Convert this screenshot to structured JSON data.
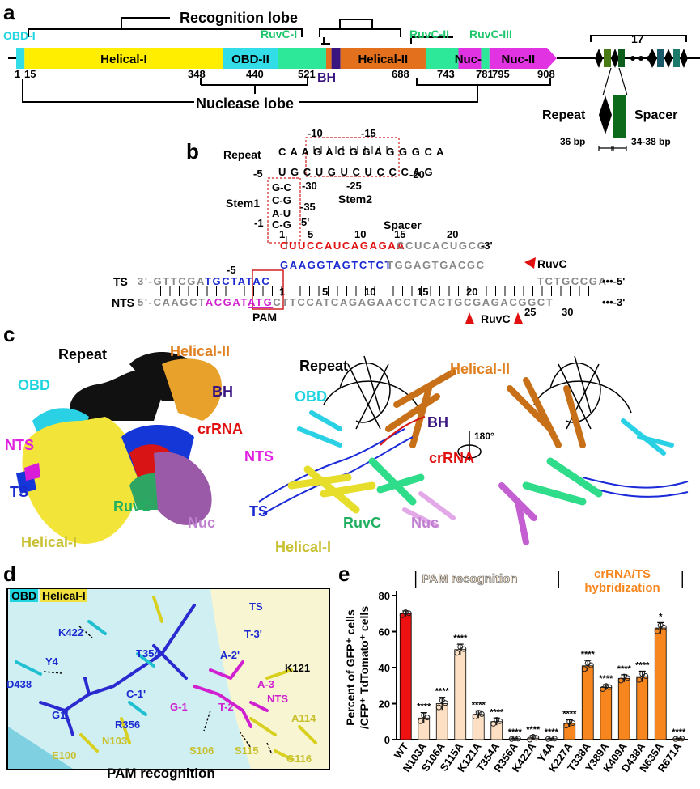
{
  "panels": {
    "a": "a",
    "b": "b",
    "c": "c",
    "d": "d",
    "e": "e"
  },
  "panel_a": {
    "recognition_lobe": "Recognition lobe",
    "nuclease_lobe": "Nuclease lobe",
    "top_labels": {
      "obd1": "OBD-I",
      "ruvc1": "RuvC-I",
      "ruvc2": "RuvC-II",
      "ruvc3": "RuvC-III"
    },
    "domains": [
      {
        "name": "",
        "color": "#33dde8",
        "start": 1,
        "end": 15
      },
      {
        "name": "Helical-I",
        "color": "#ffee00",
        "start": 15,
        "end": 348
      },
      {
        "name": "OBD-II",
        "color": "#33dde8",
        "start": 348,
        "end": 440
      },
      {
        "name": "",
        "color": "#2ee89a",
        "start": 440,
        "end": 521
      },
      {
        "name": "",
        "color": "#e2701c",
        "start": 521,
        "end": 530
      },
      {
        "name": "",
        "color": "#3a1580",
        "start": 530,
        "end": 545
      },
      {
        "name": "Helical-II",
        "color": "#e2701c",
        "start": 545,
        "end": 688
      },
      {
        "name": "",
        "color": "#2ee89a",
        "start": 688,
        "end": 743
      },
      {
        "name": "Nuc-I",
        "color": "#e233e2",
        "start": 743,
        "end": 781
      },
      {
        "name": "",
        "color": "#2ee89a",
        "start": 781,
        "end": 795
      },
      {
        "name": "Nuc-II",
        "color": "#e233e2",
        "start": 795,
        "end": 908
      }
    ],
    "positions": [
      "1",
      "15",
      "348",
      "440",
      "521",
      "688",
      "743",
      "781",
      "795",
      "908"
    ],
    "bh": "BH",
    "array_count": "17",
    "repeat": "Repeat",
    "spacer": "Spacer",
    "repeat_len": "36 bp",
    "spacer_len": "34-38 bp"
  },
  "panel_b": {
    "repeat": "Repeat",
    "stem1": "Stem1",
    "stem2": "Stem2",
    "spacer": "Spacer",
    "pam": "PAM",
    "ruvc": "RuvC",
    "ts": "TS",
    "nts": "NTS",
    "top_nums": [
      "-10",
      "-15",
      "-20",
      "-25",
      "-30",
      "-35",
      "-5",
      "-1",
      "1",
      "5'"
    ],
    "stem_top": "C A A G A C G G A G G G C A",
    "stem_bottom": "U G C U G U C U C C C A G",
    "stem1_pairs": [
      "G-C",
      "C-G",
      "A-U",
      "C-G"
    ],
    "crRNA_red": "CUUCCAUCAGAGAA",
    "crRNA_grey": "CCUCACUGCG",
    "ts_strand_red_blue": "GAAGGTAGTCTCT",
    "ts_grey": "TGGAGTGACGC",
    "ts_left": "3'-GTTCGA",
    "ts_left_blue": "TGCTA",
    "ts_pam": "TAC",
    "ts_right": "TCTGCCGA",
    "nts_left": "5'-CAAGCT",
    "nts_mag": "ACGAT",
    "nts_pam": "ATG",
    "nts_right": "CTTCCATCAGAGAACCTCACTGCGAGACGGCT",
    "end_ts": "•••-5'",
    "end_nts": "•••-3'",
    "crRNA_end": "-3'",
    "num_5": "5",
    "num_10": "10",
    "num_15": "15",
    "num_20": "20",
    "num_25": "25",
    "num_30": "30",
    "num_m5": "-5",
    "num_1": "1"
  },
  "panel_c": {
    "repeat": "Repeat",
    "helical2": "Helical-II",
    "obd": "OBD",
    "bh": "BH",
    "crrna": "crRNA",
    "nts": "NTS",
    "ts": "TS",
    "ruvc": "RuvC",
    "nuc": "Nuc",
    "helical1": "Helical-I",
    "rotate": "180°"
  },
  "panel_d": {
    "obd": "OBD",
    "helical1": "Helical-I",
    "caption": "PAM recognition",
    "residues": [
      "K422",
      "Y4",
      "D438",
      "T354",
      "R356",
      "G1'",
      "C-1'",
      "TS",
      "T-3'",
      "A-2'",
      "K121",
      "A-3",
      "NTS",
      "G-1",
      "T-2",
      "N103",
      "A114",
      "S106",
      "S115",
      "G116",
      "E100"
    ]
  },
  "chart_data": {
    "type": "bar",
    "ylabel": "Percent of GFP⁺ cells /CFP⁺ TdTomato⁺ cells",
    "ylim": [
      0,
      80
    ],
    "yticks": [
      0,
      20,
      40,
      60,
      80
    ],
    "group_labels": [
      "PAM recognition",
      "crRNA/TS hybridization"
    ],
    "categories": [
      "WT",
      "N103A",
      "S106A",
      "S115A",
      "K121A",
      "T354A",
      "R356A",
      "K422A",
      "Y4A",
      "K227A",
      "T338A",
      "Y389A",
      "K409A",
      "D438A",
      "N635A",
      "R671A"
    ],
    "values": [
      70,
      12,
      20,
      50,
      14,
      10,
      0.5,
      0.8,
      0.5,
      9,
      41,
      29,
      34,
      35,
      62,
      0.5
    ],
    "errors": [
      1.5,
      3,
      3.5,
      3,
      2,
      2,
      0.3,
      1.5,
      0.3,
      2,
      3,
      1.5,
      2,
      3,
      3,
      0.3
    ],
    "significance": [
      "",
      "****",
      "****",
      "****",
      "****",
      "****",
      "****",
      "****",
      "****",
      "****",
      "****",
      "****",
      "****",
      "****",
      "*",
      "****"
    ],
    "colors": [
      "#ee1111",
      "#fde0c4",
      "#fde0c4",
      "#fde0c4",
      "#fde0c4",
      "#fde0c4",
      "#fde0c4",
      "#fde0c4",
      "#fde0c4",
      "#f7861e",
      "#f7861e",
      "#f7861e",
      "#f7861e",
      "#f7861e",
      "#f7861e",
      "#f7861e"
    ]
  }
}
